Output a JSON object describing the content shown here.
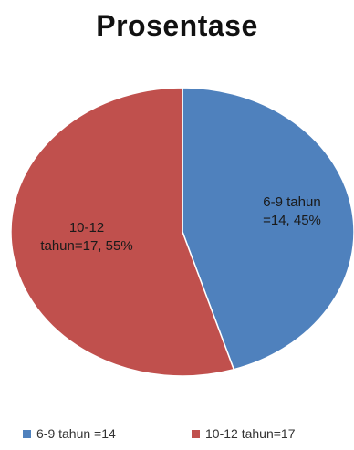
{
  "chart_data": {
    "type": "pie",
    "title": "Prosentase",
    "categories": [
      "6-9 tahun =14",
      "10-12 tahun=17"
    ],
    "values": [
      14,
      17
    ],
    "percentages": [
      45,
      55
    ],
    "slice_labels": [
      [
        "6-9 tahun",
        "=14, 45%"
      ],
      [
        "10-12",
        "tahun=17, 55%"
      ]
    ],
    "colors": [
      "#4f81bd",
      "#c0504d"
    ],
    "legend_position": "bottom",
    "start_angle": "12 o'clock, clockwise"
  }
}
